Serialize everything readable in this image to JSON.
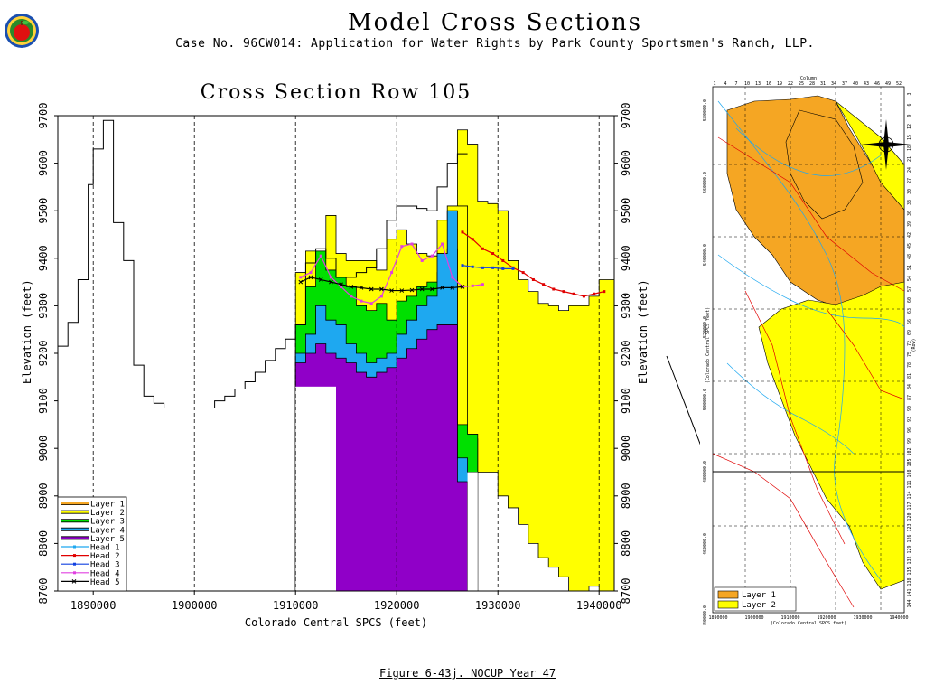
{
  "header": {
    "main_title": "Model Cross Sections",
    "subtitle": "Case No. 96CW014: Application for Water Rights by Park County Sportsmen's Ranch, LLP."
  },
  "caption": "Figure 6-43j.  NOCUP Year 47",
  "chart_data": {
    "type": "area",
    "title": "Cross Section Row 105",
    "xlabel": "Colorado Central SPCS (feet)",
    "ylabel": "Elevation (feet)",
    "xlim": [
      1886500,
      1941500
    ],
    "ylim": [
      8700,
      9700
    ],
    "xticks": [
      1890000,
      1900000,
      1910000,
      1920000,
      1930000,
      1940000
    ],
    "yticks": [
      8700,
      8800,
      8900,
      9000,
      9100,
      9200,
      9300,
      9400,
      9500,
      9600,
      9700
    ],
    "grid": "vertical dashed",
    "legend_position": "bottom-left",
    "colors": {
      "layer1": "#f5a623",
      "layer2": "#ffff00",
      "layer3": "#00e000",
      "layer4": "#1ea8f0",
      "layer5": "#9000c8",
      "head1": "#1ea8f0",
      "head2": "#e00000",
      "head3": "#1040e0",
      "head4": "#e040e0",
      "head5": "#000000"
    },
    "legend": [
      "Layer 1",
      "Layer 2",
      "Layer 3",
      "Layer 4",
      "Layer 5",
      "Head 1",
      "Head 2",
      "Head 3",
      "Head 4",
      "Head 5"
    ],
    "land_surface": {
      "x": [
        1886500,
        1887500,
        1888500,
        1889500,
        1890000,
        1891000,
        1892000,
        1893000,
        1894000,
        1895000,
        1896000,
        1897000,
        1898000,
        1900000,
        1902000,
        1903000,
        1904000,
        1905000,
        1906000,
        1907000,
        1908000,
        1909000,
        1910000,
        1911000,
        1912000,
        1913000,
        1914000,
        1915000,
        1916000,
        1917000,
        1918000,
        1919000,
        1920000,
        1921000,
        1922000,
        1923000,
        1924000,
        1925000,
        1926000
      ],
      "y": [
        9215,
        9265,
        9355,
        9555,
        9630,
        9690,
        9475,
        9395,
        9175,
        9110,
        9095,
        9085,
        9085,
        9085,
        9100,
        9110,
        9125,
        9140,
        9160,
        9185,
        9210,
        9230,
        9260,
        9390,
        9420,
        9400,
        9360,
        9360,
        9370,
        9380,
        9420,
        9480,
        9510,
        9510,
        9505,
        9500,
        9550,
        9600,
        9620
      ]
    },
    "layer1_top": {
      "x": [
        1926000,
        1927000,
        1928000,
        1929000,
        1930000,
        1931000,
        1932000,
        1933000,
        1934000,
        1935000,
        1936000,
        1937000,
        1938000,
        1939000,
        1940000,
        1941000
      ],
      "y": [
        9670,
        9640,
        9520,
        9515,
        9500,
        9395,
        9355,
        9330,
        9305,
        9300,
        9290,
        9300,
        9300,
        9320,
        9355,
        9355
      ]
    },
    "layer2_top": {
      "x": [
        1910000,
        1911000,
        1912000,
        1913000,
        1914000,
        1915000,
        1916000,
        1917000,
        1918000,
        1919000,
        1920000,
        1921000,
        1922000,
        1923000,
        1924000,
        1925000,
        1926000
      ],
      "y": [
        9370,
        9415,
        9415,
        9490,
        9410,
        9395,
        9395,
        9395,
        9375,
        9440,
        9460,
        9430,
        9410,
        9405,
        9480,
        9510,
        9510
      ]
    },
    "layer3_top": {
      "x": [
        1910000,
        1911000,
        1912000,
        1913000,
        1914000,
        1915000,
        1916000,
        1917000,
        1918000,
        1919000,
        1920000,
        1921000,
        1922000,
        1923000,
        1924000,
        1925000,
        1926000,
        1927000
      ],
      "y": [
        9260,
        9340,
        9415,
        9375,
        9360,
        9340,
        9300,
        9290,
        9305,
        9270,
        9310,
        9320,
        9340,
        9350,
        9370,
        9420,
        9050,
        9030
      ]
    },
    "layer4_top": {
      "x": [
        1910000,
        1911000,
        1912000,
        1913000,
        1914000,
        1915000,
        1916000,
        1917000,
        1918000,
        1919000,
        1920000,
        1921000,
        1922000,
        1923000,
        1924000,
        1925000,
        1926000,
        1927000
      ],
      "y": [
        9200,
        9240,
        9300,
        9270,
        9260,
        9220,
        9200,
        9180,
        9190,
        9200,
        9240,
        9270,
        9300,
        9320,
        9410,
        9500,
        8980,
        8950
      ]
    },
    "layer5_top": {
      "x": [
        1910000,
        1911000,
        1912000,
        1913000,
        1914000,
        1915000,
        1916000,
        1917000,
        1918000,
        1919000,
        1920000,
        1921000,
        1922000,
        1923000,
        1924000,
        1925000,
        1926000
      ],
      "y": [
        9180,
        9200,
        9220,
        9200,
        9190,
        9180,
        9160,
        9150,
        9160,
        9170,
        9190,
        9210,
        9230,
        9250,
        9260,
        9260,
        8930
      ]
    },
    "layer1_bottom_right": {
      "x": [
        1926000,
        1927000,
        1928000,
        1929000,
        1930000,
        1931000,
        1932000,
        1933000,
        1934000,
        1935000,
        1936000,
        1937000,
        1938000,
        1939000,
        1940000,
        1941000
      ],
      "y": [
        9060,
        9020,
        8950,
        8950,
        8900,
        8875,
        8840,
        8800,
        8770,
        8750,
        8730,
        8700,
        8700,
        8710,
        8700,
        8700
      ]
    },
    "series": [
      {
        "name": "Head 2",
        "x": [
          1926500,
          1927500,
          1928500,
          1929500,
          1930500,
          1931500,
          1932500,
          1933500,
          1934500,
          1935500,
          1936500,
          1937500,
          1938500,
          1939500,
          1940500
        ],
        "y": [
          9455,
          9440,
          9420,
          9410,
          9395,
          9380,
          9370,
          9355,
          9345,
          9335,
          9330,
          9325,
          9320,
          9325,
          9330
        ]
      },
      {
        "name": "Head 3",
        "x": [
          1926500,
          1927500,
          1928500,
          1929500,
          1930500,
          1931500
        ],
        "y": [
          9385,
          9382,
          9380,
          9380,
          9378,
          9378
        ]
      },
      {
        "name": "Head 4",
        "x": [
          1910500,
          1911500,
          1912500,
          1913500,
          1914500,
          1915500,
          1916500,
          1917500,
          1918500,
          1919500,
          1920500,
          1921500,
          1922500,
          1923500,
          1924500,
          1925500,
          1926500,
          1927500,
          1928500
        ],
        "y": [
          9360,
          9370,
          9405,
          9360,
          9340,
          9320,
          9310,
          9305,
          9320,
          9370,
          9425,
          9430,
          9395,
          9405,
          9430,
          9360,
          9340,
          9342,
          9345
        ]
      },
      {
        "name": "Head 5",
        "x": [
          1910500,
          1911500,
          1912500,
          1913500,
          1914500,
          1915500,
          1916500,
          1917500,
          1918500,
          1919500,
          1920500,
          1921500,
          1922500,
          1923500,
          1924500,
          1925500,
          1926500
        ],
        "y": [
          9350,
          9360,
          9355,
          9350,
          9345,
          9340,
          9338,
          9335,
          9335,
          9332,
          9332,
          9333,
          9335,
          9335,
          9338,
          9338,
          9340
        ]
      }
    ]
  },
  "inset_map": {
    "legend": [
      "Layer 1",
      "Layer 2"
    ],
    "xlabel": "(Colorado Central SPCS feet)",
    "ylabel": "(Colorado Central SPCS feet)",
    "column_label": "(Column)",
    "row_label": "(Row)",
    "xticks": [
      "1890000",
      "1900000",
      "1910000",
      "1920000",
      "1930000",
      "1940000"
    ],
    "yticks": [
      "580000.0",
      "560000.0",
      "540000.0",
      "520000.0",
      "500000.0",
      "480000.0",
      "460000.0",
      "440000.0"
    ],
    "column_ticks": [
      "1",
      "4",
      "7",
      "10",
      "13",
      "16",
      "19",
      "22",
      "25",
      "28",
      "31",
      "34",
      "37",
      "40",
      "43",
      "46",
      "49",
      "52"
    ],
    "row_ticks": [
      "3",
      "6",
      "9",
      "12",
      "15",
      "18",
      "21",
      "24",
      "27",
      "30",
      "33",
      "36",
      "39",
      "42",
      "45",
      "48",
      "51",
      "54",
      "57",
      "60",
      "63",
      "66",
      "69",
      "72",
      "75",
      "78",
      "81",
      "84",
      "87",
      "90",
      "93",
      "96",
      "99",
      "102",
      "105",
      "108",
      "111",
      "114",
      "117",
      "120",
      "123",
      "126",
      "129",
      "132",
      "135",
      "138",
      "141",
      "144"
    ],
    "colors": {
      "layer1": "#f5a623",
      "layer2": "#ffff00"
    }
  }
}
